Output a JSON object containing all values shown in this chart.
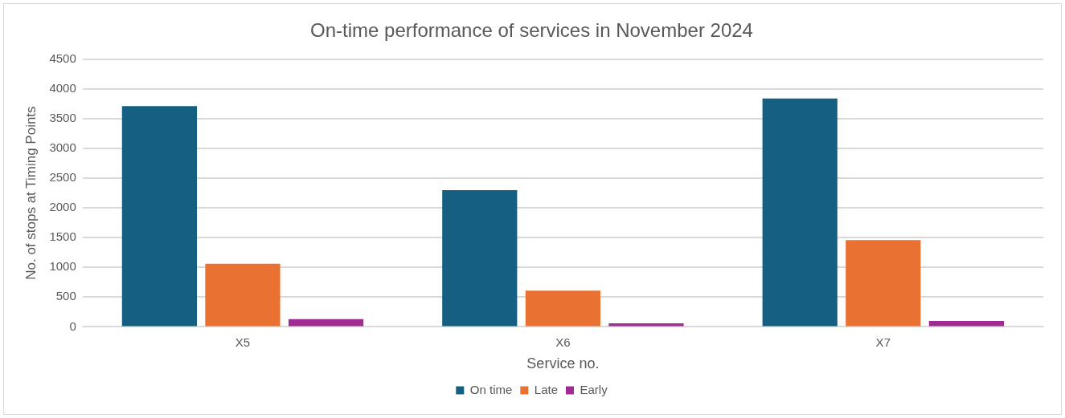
{
  "chart_data": {
    "type": "bar",
    "title": "On-time performance of services in November 2024",
    "xlabel": "Service no.",
    "ylabel": "No. of stops at Timing Points",
    "categories": [
      "X5",
      "X6",
      "X7"
    ],
    "series": [
      {
        "name": "On time",
        "color": "#156082",
        "values": [
          3710,
          2300,
          3840
        ]
      },
      {
        "name": "Late",
        "color": "#e97132",
        "values": [
          1060,
          610,
          1460
        ]
      },
      {
        "name": "Early",
        "color": "#a02b93",
        "values": [
          130,
          60,
          100
        ]
      }
    ],
    "ylim": [
      0,
      4500
    ],
    "yticks": [
      0,
      500,
      1000,
      1500,
      2000,
      2500,
      3000,
      3500,
      4000,
      4500
    ],
    "grid": "y",
    "legend": "bottom"
  }
}
